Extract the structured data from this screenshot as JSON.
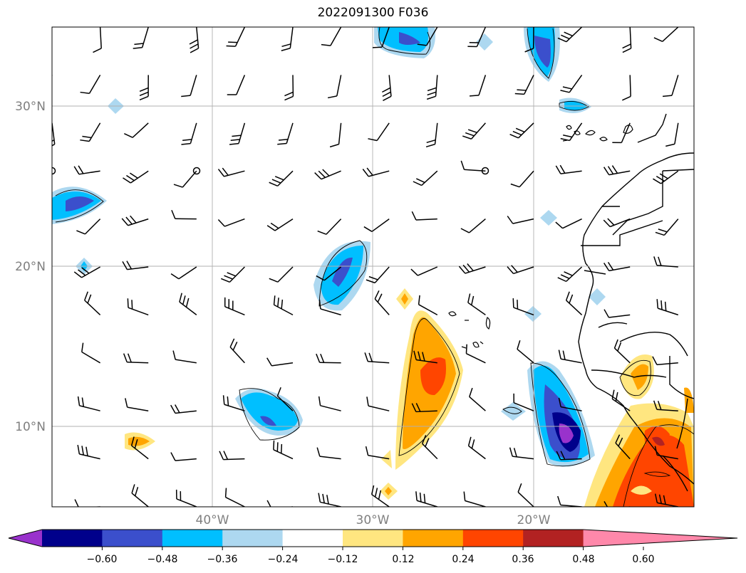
{
  "title": "2022091300 F036",
  "map": {
    "lon_range": [
      -50,
      -10
    ],
    "lat_range": [
      5,
      35
    ],
    "lon_ticks": [
      {
        "value": -40,
        "label": "40°W"
      },
      {
        "value": -30,
        "label": "30°W"
      },
      {
        "value": -20,
        "label": "20°W"
      }
    ],
    "lat_ticks": [
      {
        "value": 30,
        "label": "30°N"
      },
      {
        "value": 20,
        "label": "20°N"
      },
      {
        "value": 10,
        "label": "10°N"
      }
    ],
    "grid": true
  },
  "colorbar": {
    "labels": [
      "−0.60",
      "−0.48",
      "−0.36",
      "−0.24",
      "−0.12",
      "0.12",
      "0.24",
      "0.36",
      "0.48",
      "0.60"
    ],
    "colors": [
      "#9932cc",
      "#00008b",
      "#3b4fcc",
      "#00bfff",
      "#add8f0",
      "#ffffff",
      "#ffe680",
      "#ffa500",
      "#ff4500",
      "#b22222",
      "#ff88aa"
    ],
    "extend": "both"
  }
}
